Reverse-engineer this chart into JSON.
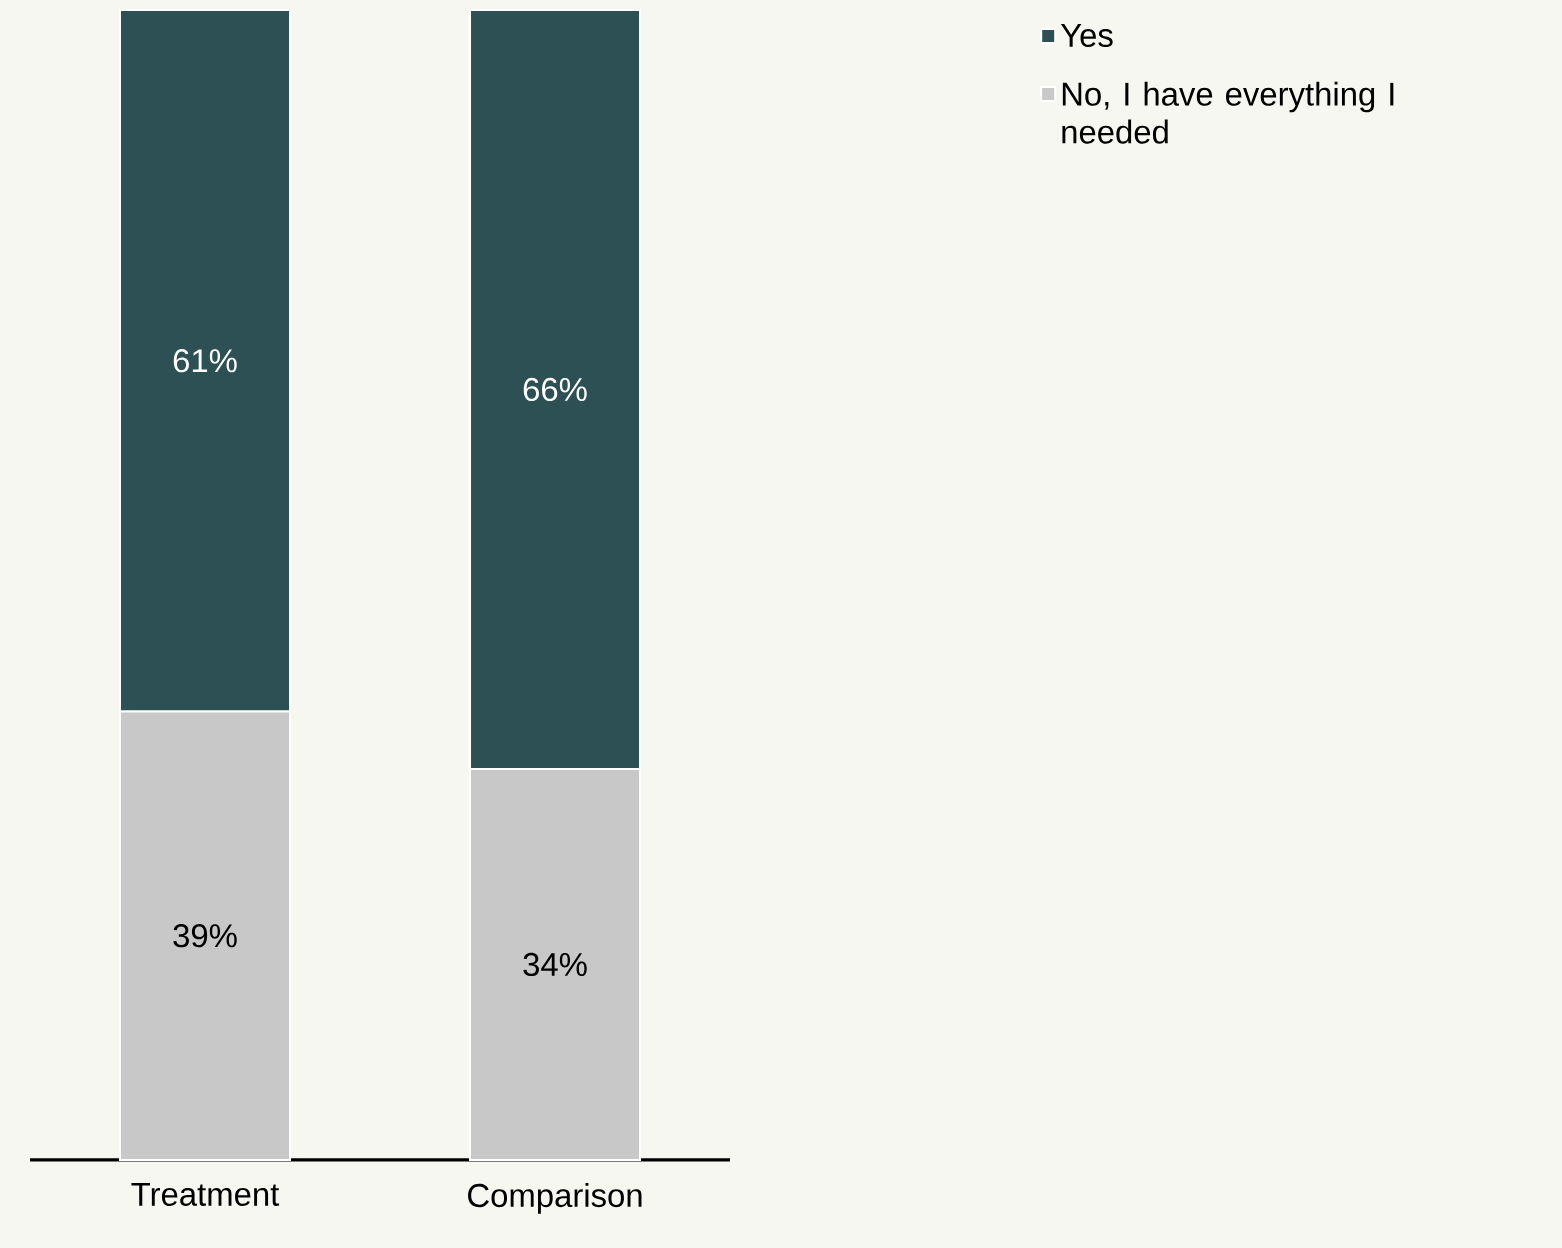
{
  "chart_data": {
    "type": "bar",
    "stacked": true,
    "categories": [
      "Treatment",
      "Comparison"
    ],
    "series": [
      {
        "name": "No, I have everything I needed",
        "color": "#c8c8c8",
        "values": [
          39,
          34
        ],
        "value_labels": [
          "39%",
          "34%"
        ]
      },
      {
        "name": "Yes",
        "color": "#2d5055",
        "values": [
          61,
          66
        ],
        "value_labels": [
          "61%",
          "66%"
        ]
      }
    ],
    "legend": "top right"
  }
}
